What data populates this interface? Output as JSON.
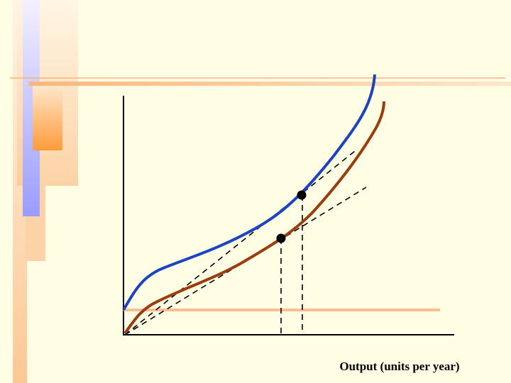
{
  "axis_label": "Output (units per year)"
}
